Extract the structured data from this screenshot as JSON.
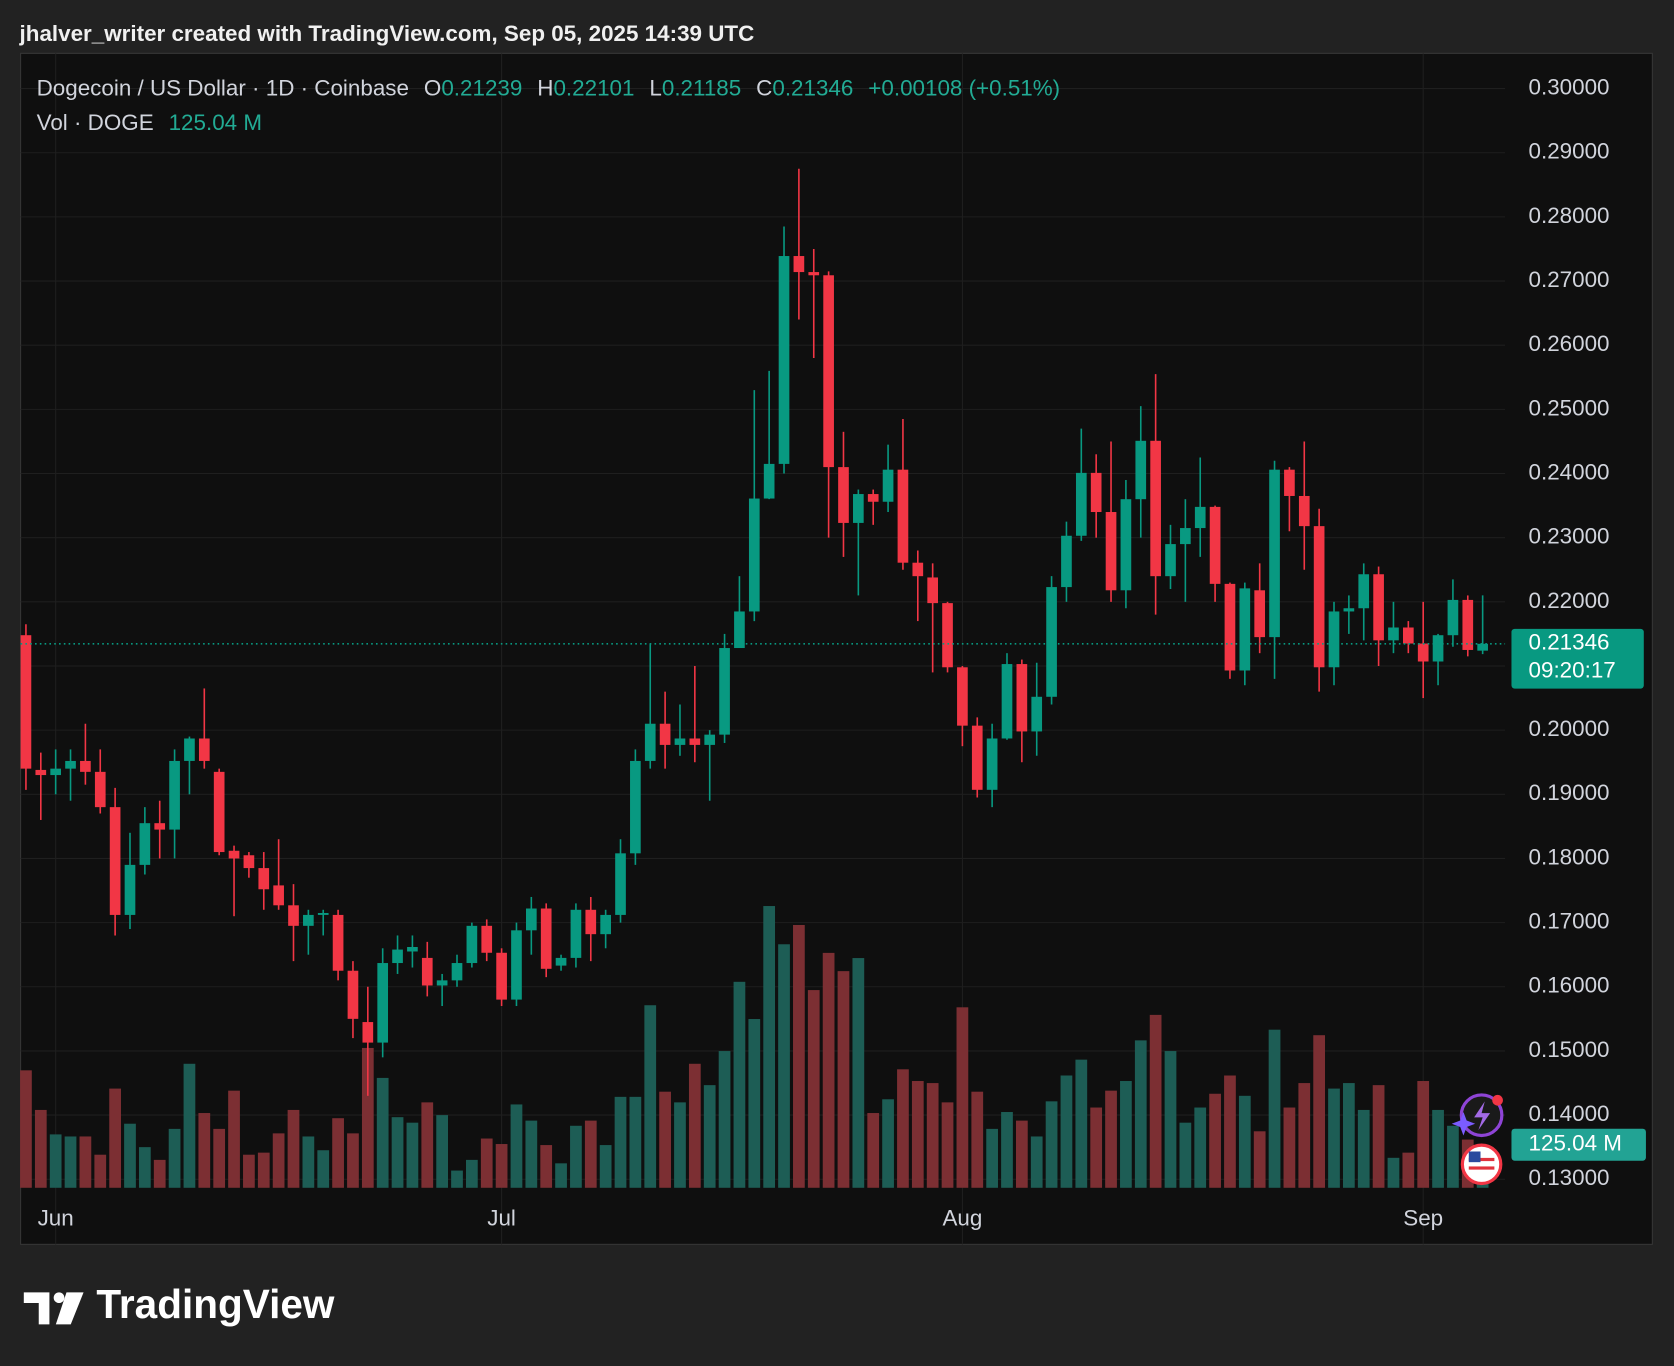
{
  "header": {
    "credit": "jhalver_writer created with TradingView.com, Sep 05, 2025 14:39 UTC",
    "symbol": "Dogecoin / US Dollar · 1D · Coinbase",
    "ohlc": [
      {
        "label": "O",
        "value": 0.21239
      },
      {
        "label": "H",
        "value": 0.22101
      },
      {
        "label": "L",
        "value": 0.21185
      },
      {
        "label": "C",
        "value": 0.21346
      }
    ],
    "change": "+0.00108 (+0.51%)",
    "volume_label": "Vol · DOGE",
    "volume": "125.04 M"
  },
  "footer": {
    "brand": "TradingView"
  },
  "chart_data": {
    "type": "candlestick",
    "categories": [
      null,
      null,
      "Jun",
      null,
      null,
      null,
      null,
      null,
      null,
      null,
      null,
      null,
      null,
      null,
      null,
      null,
      null,
      null,
      null,
      null,
      null,
      null,
      null,
      null,
      null,
      null,
      null,
      null,
      null,
      null,
      null,
      null,
      "Jul",
      null,
      null,
      null,
      null,
      null,
      null,
      null,
      null,
      null,
      null,
      null,
      null,
      null,
      null,
      null,
      null,
      null,
      null,
      null,
      null,
      null,
      null,
      null,
      null,
      null,
      null,
      null,
      null,
      null,
      null,
      "Aug",
      null,
      null,
      null,
      null,
      null,
      null,
      null,
      null,
      null,
      null,
      null,
      null,
      null,
      null,
      null,
      null,
      null,
      null,
      null,
      null,
      null,
      null,
      null,
      null,
      null,
      null,
      null,
      null,
      null,
      null,
      "Sep",
      null,
      null,
      null,
      null
    ],
    "open": [
      0.2148,
      0.1938,
      0.193,
      0.194,
      0.1952,
      0.1935,
      0.188,
      0.1712,
      0.179,
      0.1855,
      0.1845,
      0.1952,
      0.1987,
      0.1935,
      0.1812,
      0.1805,
      0.1785,
      0.1758,
      0.1727,
      0.1695,
      0.1712,
      0.1712,
      0.1625,
      0.1545,
      0.1513,
      0.1637,
      0.1655,
      0.1645,
      0.1602,
      0.161,
      0.1637,
      0.1695,
      0.1653,
      0.158,
      0.1688,
      0.1722,
      0.1633,
      0.1645,
      0.172,
      0.1682,
      0.1712,
      0.1808,
      0.1952,
      0.201,
      0.1977,
      0.1987,
      0.1977,
      0.1993,
      0.2128,
      0.2185,
      0.2361,
      0.2415,
      0.2739,
      0.2714,
      0.2709,
      0.241,
      0.2323,
      0.2368,
      0.2356,
      0.2406,
      0.2261,
      0.2238,
      0.2198,
      0.2098,
      0.2007,
      0.1907,
      0.1987,
      0.2103,
      0.1998,
      0.2052,
      0.2223,
      0.2303,
      0.2401,
      0.234,
      0.2218,
      0.236,
      0.2451,
      0.224,
      0.229,
      0.2315,
      0.2348,
      0.2228,
      0.2093,
      0.2218,
      0.2145,
      0.2406,
      0.2365,
      0.2318,
      0.2098,
      0.2185,
      0.219,
      0.2243,
      0.214,
      0.216,
      0.2135,
      0.2107,
      0.2148,
      0.2203,
      0.21239
    ],
    "high": [
      0.2165,
      0.1965,
      0.197,
      0.197,
      0.201,
      0.197,
      0.191,
      0.184,
      0.188,
      0.189,
      0.197,
      0.199,
      0.2065,
      0.194,
      0.182,
      0.181,
      0.181,
      0.183,
      0.176,
      0.172,
      0.172,
      0.172,
      0.164,
      0.16,
      0.166,
      0.168,
      0.168,
      0.167,
      0.162,
      0.165,
      0.17,
      0.1705,
      0.166,
      0.17,
      0.174,
      0.173,
      0.165,
      0.173,
      0.174,
      0.172,
      0.183,
      0.197,
      0.2135,
      0.206,
      0.204,
      0.21,
      0.2,
      0.215,
      0.224,
      0.253,
      0.256,
      0.2785,
      0.2875,
      0.275,
      0.2715,
      0.2465,
      0.2375,
      0.2375,
      0.2445,
      0.2485,
      0.228,
      0.226,
      0.22,
      0.21,
      0.202,
      0.201,
      0.212,
      0.211,
      0.2105,
      0.224,
      0.2325,
      0.247,
      0.243,
      0.245,
      0.239,
      0.2505,
      0.2555,
      0.232,
      0.236,
      0.2425,
      0.235,
      0.223,
      0.223,
      0.226,
      0.242,
      0.241,
      0.245,
      0.2345,
      0.22,
      0.221,
      0.226,
      0.2255,
      0.22,
      0.217,
      0.22,
      0.215,
      0.2235,
      0.221,
      0.22101
    ],
    "low": [
      0.1907,
      0.186,
      0.19,
      0.189,
      0.1915,
      0.187,
      0.168,
      0.169,
      0.1775,
      0.18,
      0.18,
      0.19,
      0.194,
      0.1805,
      0.171,
      0.177,
      0.172,
      0.172,
      0.164,
      0.165,
      0.168,
      0.161,
      0.152,
      0.143,
      0.149,
      0.162,
      0.163,
      0.1585,
      0.157,
      0.16,
      0.163,
      0.164,
      0.157,
      0.157,
      0.165,
      0.1615,
      0.1625,
      0.163,
      0.164,
      0.166,
      0.17,
      0.179,
      0.194,
      0.194,
      0.196,
      0.195,
      0.189,
      0.198,
      0.213,
      0.217,
      0.236,
      0.24,
      0.264,
      0.258,
      0.23,
      0.227,
      0.221,
      0.232,
      0.234,
      0.225,
      0.217,
      0.209,
      0.209,
      0.1975,
      0.1895,
      0.188,
      0.1985,
      0.195,
      0.196,
      0.204,
      0.22,
      0.2295,
      0.23,
      0.22,
      0.219,
      0.23,
      0.218,
      0.222,
      0.22,
      0.227,
      0.22,
      0.208,
      0.207,
      0.212,
      0.208,
      0.231,
      0.225,
      0.206,
      0.207,
      0.215,
      0.214,
      0.21,
      0.212,
      0.212,
      0.205,
      0.207,
      0.213,
      0.2115,
      0.21185
    ],
    "close": [
      0.194,
      0.193,
      0.194,
      0.1952,
      0.1935,
      0.188,
      0.1712,
      0.179,
      0.1855,
      0.1845,
      0.1952,
      0.1987,
      0.1952,
      0.181,
      0.18,
      0.1785,
      0.1752,
      0.1727,
      0.1695,
      0.1712,
      0.1715,
      0.1625,
      0.155,
      0.1513,
      0.1637,
      0.1658,
      0.1662,
      0.1602,
      0.161,
      0.1637,
      0.1695,
      0.1653,
      0.158,
      0.1688,
      0.1722,
      0.1628,
      0.1645,
      0.172,
      0.1682,
      0.1712,
      0.1808,
      0.1952,
      0.201,
      0.1977,
      0.1987,
      0.1977,
      0.1993,
      0.2128,
      0.2185,
      0.2361,
      0.2415,
      0.2739,
      0.2714,
      0.2709,
      0.241,
      0.2323,
      0.2368,
      0.2356,
      0.2406,
      0.2261,
      0.224,
      0.2198,
      0.2098,
      0.2007,
      0.1907,
      0.1987,
      0.2103,
      0.1998,
      0.2052,
      0.2223,
      0.2303,
      0.2401,
      0.234,
      0.2218,
      0.236,
      0.2451,
      0.224,
      0.229,
      0.2315,
      0.2348,
      0.2228,
      0.2093,
      0.2221,
      0.2145,
      0.2406,
      0.2365,
      0.2318,
      0.2098,
      0.2185,
      0.219,
      0.2243,
      0.214,
      0.216,
      0.2135,
      0.2107,
      0.2148,
      0.2203,
      0.2125,
      0.21346
    ],
    "volume": [
      341,
      226,
      155,
      149,
      149,
      96,
      288,
      186,
      118,
      81,
      171,
      360,
      217,
      171,
      282,
      96,
      102,
      158,
      226,
      149,
      109,
      202,
      158,
      406,
      319,
      205,
      189,
      248,
      211,
      50,
      81,
      143,
      127,
      242,
      195,
      124,
      71,
      180,
      195,
      124,
      264,
      264,
      530,
      279,
      248,
      360,
      298,
      397,
      598,
      490,
      818,
      707,
      763,
      574,
      682,
      629,
      667,
      217,
      257,
      344,
      310,
      304,
      248,
      524,
      279,
      171,
      220,
      195,
      149,
      251,
      326,
      372,
      233,
      282,
      310,
      428,
      502,
      397,
      189,
      233,
      273,
      326,
      267,
      164,
      459,
      233,
      304,
      443,
      288,
      304,
      226,
      298,
      87,
      102,
      310,
      226,
      180,
      140,
      125.04
    ],
    "countdown": "09:20:17",
    "up_color": "#089981",
    "down_color": "#f23645",
    "volume_up_color": "#1d5d55",
    "volume_down_color": "#7c2f33",
    "ylim": [
      0.12867,
      0.30549
    ],
    "yticks": [
      {
        "value": 0.13,
        "label": "0.13000"
      },
      {
        "value": 0.14,
        "label": "0.14000"
      },
      {
        "value": 0.15,
        "label": "0.15000"
      },
      {
        "value": 0.16,
        "label": "0.16000"
      },
      {
        "value": 0.17,
        "label": "0.17000"
      },
      {
        "value": 0.18,
        "label": "0.18000"
      },
      {
        "value": 0.19,
        "label": "0.19000"
      },
      {
        "value": 0.2,
        "label": "0.20000"
      },
      {
        "value": 0.21,
        "label": "0.21000"
      },
      {
        "value": 0.22,
        "label": "0.22000"
      },
      {
        "value": 0.23,
        "label": "0.23000"
      },
      {
        "value": 0.24,
        "label": "0.24000"
      },
      {
        "value": 0.25,
        "label": "0.25000"
      },
      {
        "value": 0.26,
        "label": "0.26000"
      },
      {
        "value": 0.27,
        "label": "0.27000"
      },
      {
        "value": 0.28,
        "label": "0.28000"
      },
      {
        "value": 0.29,
        "label": "0.29000"
      },
      {
        "value": 0.3,
        "label": "0.30000"
      }
    ],
    "grid": true
  }
}
